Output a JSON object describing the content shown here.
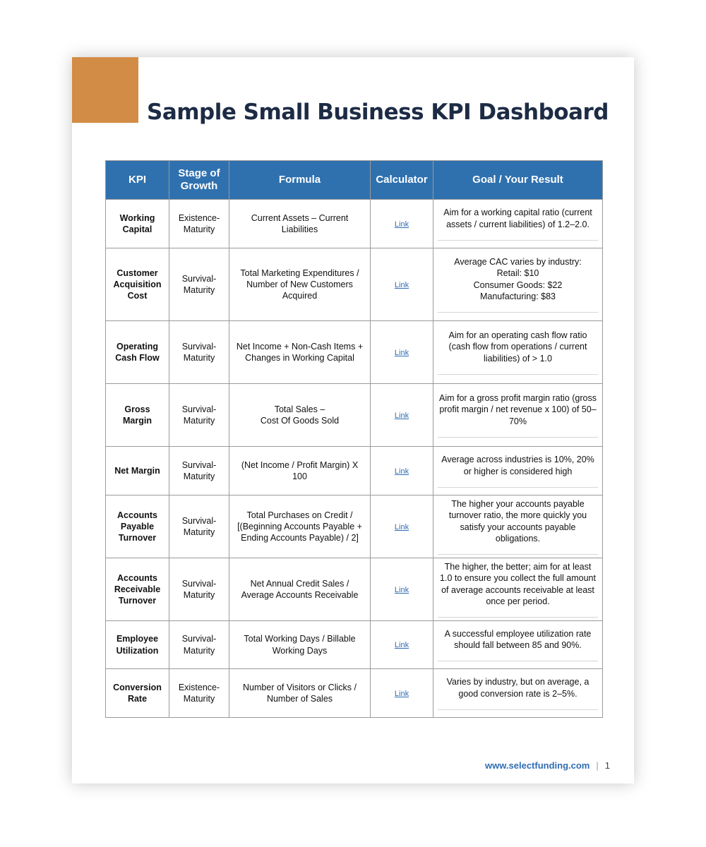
{
  "title": "Sample Small Business KPI Dashboard",
  "colors": {
    "accent": "#d38c45",
    "header": "#2f71af",
    "title": "#1d2b45",
    "link": "#2f6db3"
  },
  "table": {
    "headers": {
      "kpi": "KPI",
      "stage": "Stage of Growth",
      "formula": "Formula",
      "calculator": "Calculator",
      "goal": "Goal / Your Result"
    },
    "rows": [
      {
        "kpi": "Working Capital",
        "stage": "Existence-\nMaturity",
        "formula": "Current Assets – Current Liabilities",
        "calculator": "Link",
        "goal": "Aim for a working capital ratio (current assets / current liabilities) of 1.2–2.0."
      },
      {
        "kpi": "Customer Acquisition Cost",
        "stage": "Survival-\nMaturity",
        "formula": "Total Marketing Expenditures / Number of New Customers Acquired",
        "calculator": "Link",
        "goal": "Average CAC varies by industry:\nRetail: $10\nConsumer Goods: $22\nManufacturing: $83"
      },
      {
        "kpi": "Operating Cash Flow",
        "stage": "Survival-\nMaturity",
        "formula": "Net Income + Non-Cash Items + Changes in Working Capital",
        "calculator": "Link",
        "goal": "Aim for an operating cash flow ratio (cash flow from operations / current liabilities) of > 1.0"
      },
      {
        "kpi": "Gross Margin",
        "stage": "Survival-\nMaturity",
        "formula": "Total Sales –\nCost Of Goods Sold",
        "calculator": "Link",
        "goal": "Aim for a gross profit margin ratio (gross profit margin / net revenue x 100) of 50–70%"
      },
      {
        "kpi": "Net Margin",
        "stage": "Survival-\nMaturity",
        "formula": "(Net Income / Profit Margin) X 100",
        "calculator": "Link",
        "goal": "Average across industries is 10%, 20% or higher is considered high"
      },
      {
        "kpi": "Accounts Payable Turnover",
        "stage": "Survival-\nMaturity",
        "formula": "Total Purchases on Credit / [(Beginning Accounts Payable + Ending Accounts Payable) / 2]",
        "calculator": "Link",
        "goal": "The higher your accounts payable turnover ratio, the more quickly you satisfy your accounts payable obligations."
      },
      {
        "kpi": "Accounts Receivable Turnover",
        "stage": "Survival-\nMaturity",
        "formula": "Net Annual Credit Sales / Average Accounts Receivable",
        "calculator": "Link",
        "goal": "The higher, the better; aim for at least 1.0 to ensure you collect the full amount of average accounts receivable at least once per period."
      },
      {
        "kpi": "Employee Utilization",
        "stage": "Survival-\nMaturity",
        "formula": "Total Working Days / Billable Working Days",
        "calculator": "Link",
        "goal": "A successful employee utilization rate should fall between 85 and 90%."
      },
      {
        "kpi": "Conversion Rate",
        "stage": "Existence-\nMaturity",
        "formula": "Number of Visitors or Clicks / Number of Sales",
        "calculator": "Link",
        "goal": "Varies by industry, but on average, a good conversion rate is 2–5%."
      }
    ]
  },
  "footer": {
    "website": "www.selectfunding.com",
    "page_number": "1"
  }
}
